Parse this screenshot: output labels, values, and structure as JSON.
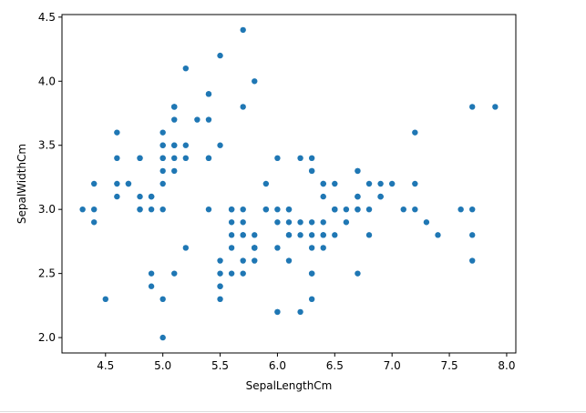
{
  "chart_data": {
    "type": "scatter",
    "title": "",
    "xlabel": "SepalLengthCm",
    "ylabel": "SepalWidthCm",
    "xlim": [
      4.12,
      8.08
    ],
    "ylim": [
      1.88,
      4.52
    ],
    "xticks": [
      "4.5",
      "5.0",
      "5.5",
      "6.0",
      "6.5",
      "7.0",
      "7.5",
      "8.0"
    ],
    "yticks": [
      "2.0",
      "2.5",
      "3.0",
      "3.5",
      "4.0",
      "4.5"
    ],
    "grid": false,
    "legend": "none",
    "marker_color": "#1f77b4",
    "points": [
      [
        5.1,
        3.5
      ],
      [
        4.9,
        3.0
      ],
      [
        4.7,
        3.2
      ],
      [
        4.6,
        3.1
      ],
      [
        5.0,
        3.6
      ],
      [
        5.4,
        3.9
      ],
      [
        4.6,
        3.4
      ],
      [
        5.0,
        3.4
      ],
      [
        4.4,
        2.9
      ],
      [
        4.9,
        3.1
      ],
      [
        5.4,
        3.7
      ],
      [
        4.8,
        3.4
      ],
      [
        4.8,
        3.0
      ],
      [
        4.3,
        3.0
      ],
      [
        5.8,
        4.0
      ],
      [
        5.7,
        4.4
      ],
      [
        5.4,
        3.9
      ],
      [
        5.1,
        3.5
      ],
      [
        5.7,
        3.8
      ],
      [
        5.1,
        3.8
      ],
      [
        5.4,
        3.4
      ],
      [
        5.1,
        3.7
      ],
      [
        4.6,
        3.6
      ],
      [
        5.1,
        3.3
      ],
      [
        4.8,
        3.4
      ],
      [
        5.0,
        3.0
      ],
      [
        5.0,
        3.4
      ],
      [
        5.2,
        3.5
      ],
      [
        5.2,
        3.4
      ],
      [
        4.7,
        3.2
      ],
      [
        4.8,
        3.1
      ],
      [
        5.4,
        3.4
      ],
      [
        5.2,
        4.1
      ],
      [
        5.5,
        4.2
      ],
      [
        4.9,
        3.1
      ],
      [
        5.0,
        3.2
      ],
      [
        5.5,
        3.5
      ],
      [
        4.9,
        3.1
      ],
      [
        4.4,
        3.0
      ],
      [
        5.1,
        3.4
      ],
      [
        5.0,
        3.5
      ],
      [
        4.5,
        2.3
      ],
      [
        4.4,
        3.2
      ],
      [
        5.0,
        3.5
      ],
      [
        5.1,
        3.8
      ],
      [
        4.8,
        3.0
      ],
      [
        5.1,
        3.8
      ],
      [
        4.6,
        3.2
      ],
      [
        5.3,
        3.7
      ],
      [
        5.0,
        3.3
      ],
      [
        7.0,
        3.2
      ],
      [
        6.4,
        3.2
      ],
      [
        6.9,
        3.1
      ],
      [
        5.5,
        2.3
      ],
      [
        6.5,
        2.8
      ],
      [
        5.7,
        2.8
      ],
      [
        6.3,
        3.3
      ],
      [
        4.9,
        2.4
      ],
      [
        6.6,
        2.9
      ],
      [
        5.2,
        2.7
      ],
      [
        5.0,
        2.0
      ],
      [
        5.9,
        3.0
      ],
      [
        6.0,
        2.2
      ],
      [
        6.1,
        2.9
      ],
      [
        5.6,
        2.9
      ],
      [
        6.7,
        3.1
      ],
      [
        5.6,
        3.0
      ],
      [
        5.8,
        2.7
      ],
      [
        6.2,
        2.2
      ],
      [
        5.6,
        2.5
      ],
      [
        5.9,
        3.2
      ],
      [
        6.1,
        2.8
      ],
      [
        6.3,
        2.5
      ],
      [
        6.1,
        2.8
      ],
      [
        6.4,
        2.9
      ],
      [
        6.6,
        3.0
      ],
      [
        6.8,
        2.8
      ],
      [
        6.7,
        3.0
      ],
      [
        6.0,
        2.9
      ],
      [
        5.7,
        2.6
      ],
      [
        5.5,
        2.4
      ],
      [
        5.5,
        2.4
      ],
      [
        5.8,
        2.7
      ],
      [
        6.0,
        2.7
      ],
      [
        5.4,
        3.0
      ],
      [
        6.0,
        3.4
      ],
      [
        6.7,
        3.1
      ],
      [
        6.3,
        2.3
      ],
      [
        5.6,
        3.0
      ],
      [
        5.5,
        2.5
      ],
      [
        5.5,
        2.6
      ],
      [
        6.1,
        3.0
      ],
      [
        5.8,
        2.6
      ],
      [
        5.0,
        2.3
      ],
      [
        5.6,
        2.7
      ],
      [
        5.7,
        3.0
      ],
      [
        5.7,
        2.9
      ],
      [
        6.2,
        2.9
      ],
      [
        5.1,
        2.5
      ],
      [
        5.7,
        2.8
      ],
      [
        6.3,
        3.3
      ],
      [
        5.8,
        2.7
      ],
      [
        7.1,
        3.0
      ],
      [
        6.3,
        2.9
      ],
      [
        6.5,
        3.0
      ],
      [
        7.6,
        3.0
      ],
      [
        4.9,
        2.5
      ],
      [
        7.3,
        2.9
      ],
      [
        6.7,
        2.5
      ],
      [
        7.2,
        3.6
      ],
      [
        6.5,
        3.2
      ],
      [
        6.4,
        2.7
      ],
      [
        6.8,
        3.0
      ],
      [
        5.7,
        2.5
      ],
      [
        5.8,
        2.8
      ],
      [
        6.4,
        3.2
      ],
      [
        6.5,
        3.0
      ],
      [
        7.7,
        3.8
      ],
      [
        7.7,
        2.6
      ],
      [
        6.0,
        2.2
      ],
      [
        6.9,
        3.2
      ],
      [
        5.6,
        2.8
      ],
      [
        7.7,
        2.8
      ],
      [
        6.3,
        2.7
      ],
      [
        6.7,
        3.3
      ],
      [
        7.2,
        3.2
      ],
      [
        6.2,
        2.8
      ],
      [
        6.1,
        3.0
      ],
      [
        6.4,
        2.8
      ],
      [
        7.2,
        3.0
      ],
      [
        7.4,
        2.8
      ],
      [
        7.9,
        3.8
      ],
      [
        6.4,
        2.8
      ],
      [
        6.3,
        2.8
      ],
      [
        6.1,
        2.6
      ],
      [
        7.7,
        3.0
      ],
      [
        6.3,
        3.4
      ],
      [
        6.4,
        3.1
      ],
      [
        6.0,
        3.0
      ],
      [
        6.9,
        3.1
      ],
      [
        6.7,
        3.1
      ],
      [
        6.9,
        3.1
      ],
      [
        5.8,
        2.7
      ],
      [
        6.8,
        3.2
      ],
      [
        6.7,
        3.3
      ],
      [
        6.7,
        3.0
      ],
      [
        6.3,
        2.5
      ],
      [
        6.5,
        3.0
      ],
      [
        6.2,
        3.4
      ],
      [
        5.9,
        3.0
      ]
    ]
  }
}
